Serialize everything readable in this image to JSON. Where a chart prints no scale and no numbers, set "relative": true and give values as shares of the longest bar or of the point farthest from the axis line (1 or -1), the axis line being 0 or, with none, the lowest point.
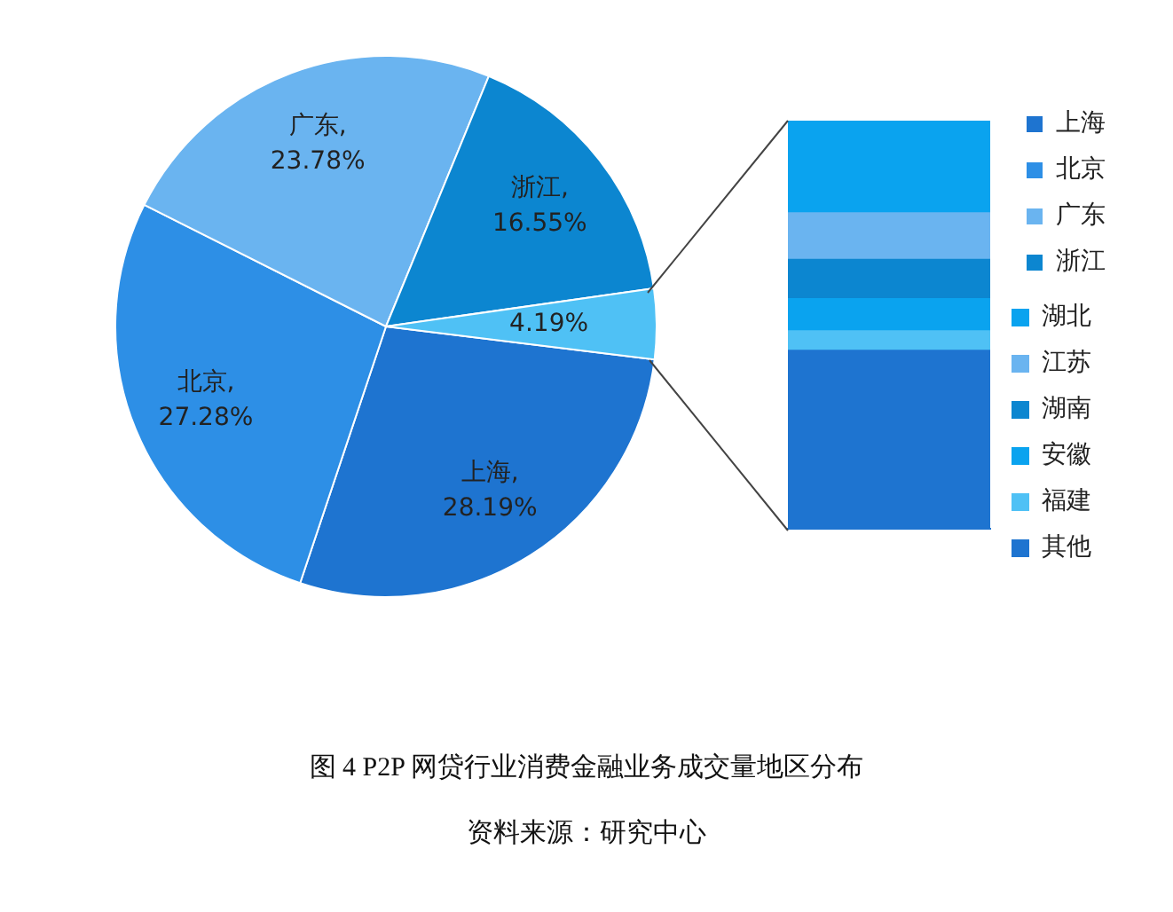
{
  "chart_data": [
    {
      "type": "pie",
      "title": "图 4   P2P 网贷行业消费金融业务成交量地区分布",
      "annotations": [
        "资料来源：研究中心"
      ],
      "categories": [
        "上海",
        "北京",
        "广东",
        "浙江",
        null
      ],
      "values": [
        28.19,
        27.28,
        23.78,
        16.55,
        4.19
      ],
      "value_labels": [
        "上海,\n28.19%",
        "北京,\n27.28%",
        "广东,\n23.78%",
        "浙江,\n16.55%",
        "4.19%"
      ],
      "colors": [
        "#1e74d0",
        "#2d8fe6",
        "#6ab4f0",
        "#0c86d0",
        "#4fc1f5"
      ],
      "legend": "right"
    },
    {
      "type": "bar",
      "stacked": true,
      "relative": true,
      "categories": [
        null
      ],
      "legend": "right",
      "series": [
        {
          "name": "其他",
          "color": "#1e74d0",
          "values": [
            0.437
          ]
        },
        {
          "name": "福建",
          "color": "#4fc1f5",
          "values": [
            0.048
          ]
        },
        {
          "name": "安徽",
          "color": "#0aa3ef",
          "values": [
            0.079
          ]
        },
        {
          "name": "湖南",
          "color": "#0c86d0",
          "values": [
            0.096
          ]
        },
        {
          "name": "江苏",
          "color": "#6ab4f0",
          "values": [
            0.114
          ]
        },
        {
          "name": "湖北",
          "color": "#0aa3ef",
          "values": [
            0.226
          ]
        }
      ]
    }
  ]
}
